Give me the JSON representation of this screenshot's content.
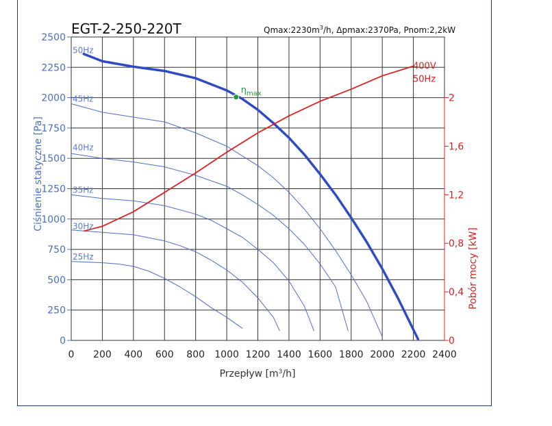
{
  "chart_data": {
    "type": "line",
    "title": "EGT-2-250-220T",
    "subtitle_parts": {
      "q": "Qmax:2230m",
      "unit_sup": "3",
      "rest": "/h, Δpmax:2370Pa, Pnom:2,2kW"
    },
    "xlabel_parts": {
      "pre": "Przepływ [m",
      "sup": "3",
      "post": "/h]"
    },
    "ylabel": "Ciśnienie statyczne [Pa]",
    "y2label": "Pobór mocy [kW]",
    "xlim": [
      0,
      2400
    ],
    "ylim": [
      0,
      2500
    ],
    "y2lim": [
      0,
      2.5
    ],
    "xticks": [
      "0",
      "200",
      "400",
      "600",
      "800",
      "1000",
      "1200",
      "1400",
      "1600",
      "1800",
      "2000",
      "2200",
      "2400"
    ],
    "yticks": [
      "0",
      "250",
      "500",
      "750",
      "1000",
      "1250",
      "1500",
      "1750",
      "2000",
      "2250",
      "2500"
    ],
    "y2ticks": [
      "0",
      "0,4",
      "0,8",
      "1,2",
      "1,6",
      "2"
    ],
    "grid": true,
    "series": [
      {
        "name": "50Hz",
        "label_at": 2400,
        "bold": true,
        "x": [
          80,
          200,
          400,
          600,
          800,
          1000,
          1100,
          1200,
          1300,
          1400,
          1500,
          1600,
          1700,
          1800,
          1900,
          2000,
          2100,
          2230
        ],
        "y": [
          2360,
          2300,
          2255,
          2220,
          2160,
          2060,
          1990,
          1900,
          1790,
          1670,
          1530,
          1370,
          1200,
          1010,
          810,
          590,
          350,
          10
        ]
      },
      {
        "name": "45Hz",
        "label_at": 2000,
        "x": [
          0,
          200,
          400,
          600,
          800,
          1000,
          1100,
          1200,
          1300,
          1400,
          1500,
          1600,
          1700,
          1800,
          1900,
          2000
        ],
        "y": [
          1950,
          1880,
          1840,
          1800,
          1710,
          1600,
          1520,
          1440,
          1340,
          1220,
          1080,
          920,
          740,
          540,
          320,
          30
        ]
      },
      {
        "name": "40Hz",
        "label_at": 1600,
        "x": [
          0,
          200,
          400,
          600,
          800,
          1000,
          1100,
          1200,
          1300,
          1400,
          1500,
          1600,
          1700,
          1780
        ],
        "y": [
          1540,
          1500,
          1470,
          1430,
          1360,
          1270,
          1200,
          1120,
          1030,
          920,
          790,
          630,
          440,
          80
        ]
      },
      {
        "name": "35Hz",
        "label_at": 1250,
        "x": [
          0,
          200,
          400,
          600,
          800,
          900,
          1000,
          1100,
          1200,
          1300,
          1400,
          1500,
          1560
        ],
        "y": [
          1200,
          1170,
          1150,
          1110,
          1040,
          990,
          920,
          850,
          750,
          640,
          490,
          280,
          80
        ]
      },
      {
        "name": "30Hz",
        "label_at": 950,
        "x": [
          0,
          200,
          400,
          600,
          700,
          800,
          900,
          1000,
          1100,
          1200,
          1300,
          1340
        ],
        "y": [
          910,
          890,
          870,
          820,
          780,
          730,
          660,
          580,
          480,
          350,
          190,
          80
        ]
      },
      {
        "name": "25Hz",
        "label_at": 700,
        "x": [
          0,
          200,
          300,
          400,
          500,
          600,
          700,
          800,
          900,
          1000,
          1100
        ],
        "y": [
          650,
          640,
          630,
          610,
          570,
          510,
          440,
          360,
          270,
          190,
          100
        ]
      }
    ],
    "power_series": {
      "name_line1": "400V",
      "name_line2": "50Hz",
      "x": [
        80,
        200,
        400,
        600,
        800,
        1000,
        1200,
        1400,
        1600,
        1800,
        2000,
        2200
      ],
      "y": [
        0.9,
        0.94,
        1.06,
        1.22,
        1.38,
        1.55,
        1.71,
        1.85,
        1.97,
        2.07,
        2.18,
        2.26
      ]
    },
    "eta": {
      "label": "η",
      "sub": "max",
      "x": 1060,
      "y": 2005
    }
  },
  "colors": {
    "pressure": "#2e4bc4",
    "pressure_thin": "#4a6fc4",
    "power": "#e02020",
    "eta": "#1e9e3a",
    "grid": "#333333",
    "frame": "#1f3a5f"
  }
}
